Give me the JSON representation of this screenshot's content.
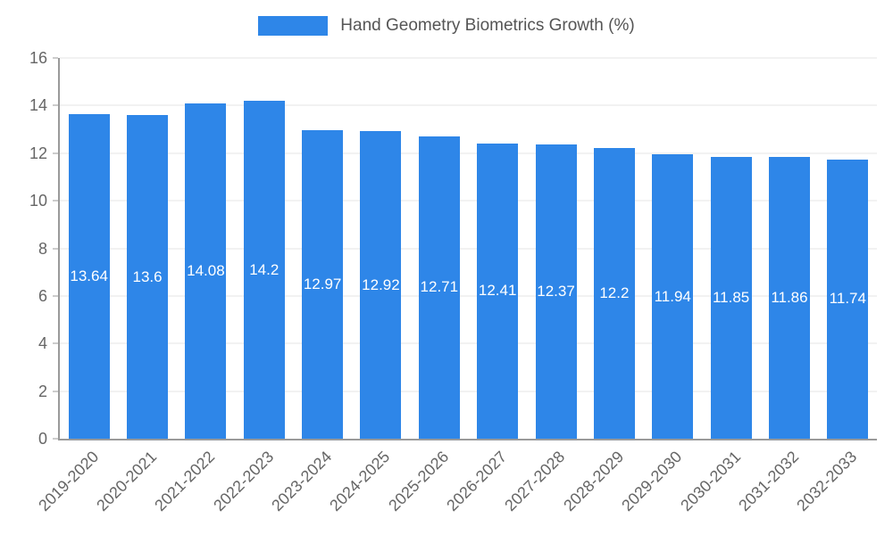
{
  "chart_data": {
    "type": "bar",
    "title": "Hand Geometry Biometrics Growth (%)",
    "categories": [
      "2019-2020",
      "2020-2021",
      "2021-2022",
      "2022-2023",
      "2023-2024",
      "2024-2025",
      "2025-2026",
      "2026-2027",
      "2027-2028",
      "2028-2029",
      "2029-2030",
      "2030-2031",
      "2031-2032",
      "2032-2033"
    ],
    "values": [
      13.64,
      13.6,
      14.08,
      14.2,
      12.97,
      12.92,
      12.71,
      12.41,
      12.37,
      12.2,
      11.94,
      11.85,
      11.86,
      11.74
    ],
    "value_labels": [
      "13.64",
      "13.6",
      "14.08",
      "14.2",
      "12.97",
      "12.92",
      "12.71",
      "12.41",
      "12.37",
      "12.2",
      "11.94",
      "11.85",
      "11.86",
      "11.74"
    ],
    "xlabel": "",
    "ylabel": "",
    "ylim": [
      0,
      16
    ],
    "yticks": [
      0,
      2,
      4,
      6,
      8,
      10,
      12,
      14,
      16
    ],
    "grid": true,
    "legend_position": "top",
    "colors": {
      "bar": "#2e86e8",
      "bar_label": "#ffffff",
      "axis_text": "#666666",
      "axis_line": "#9a9a9a",
      "gridline": "#e6e6e6",
      "title_text": "#555555",
      "background": "#ffffff"
    }
  }
}
